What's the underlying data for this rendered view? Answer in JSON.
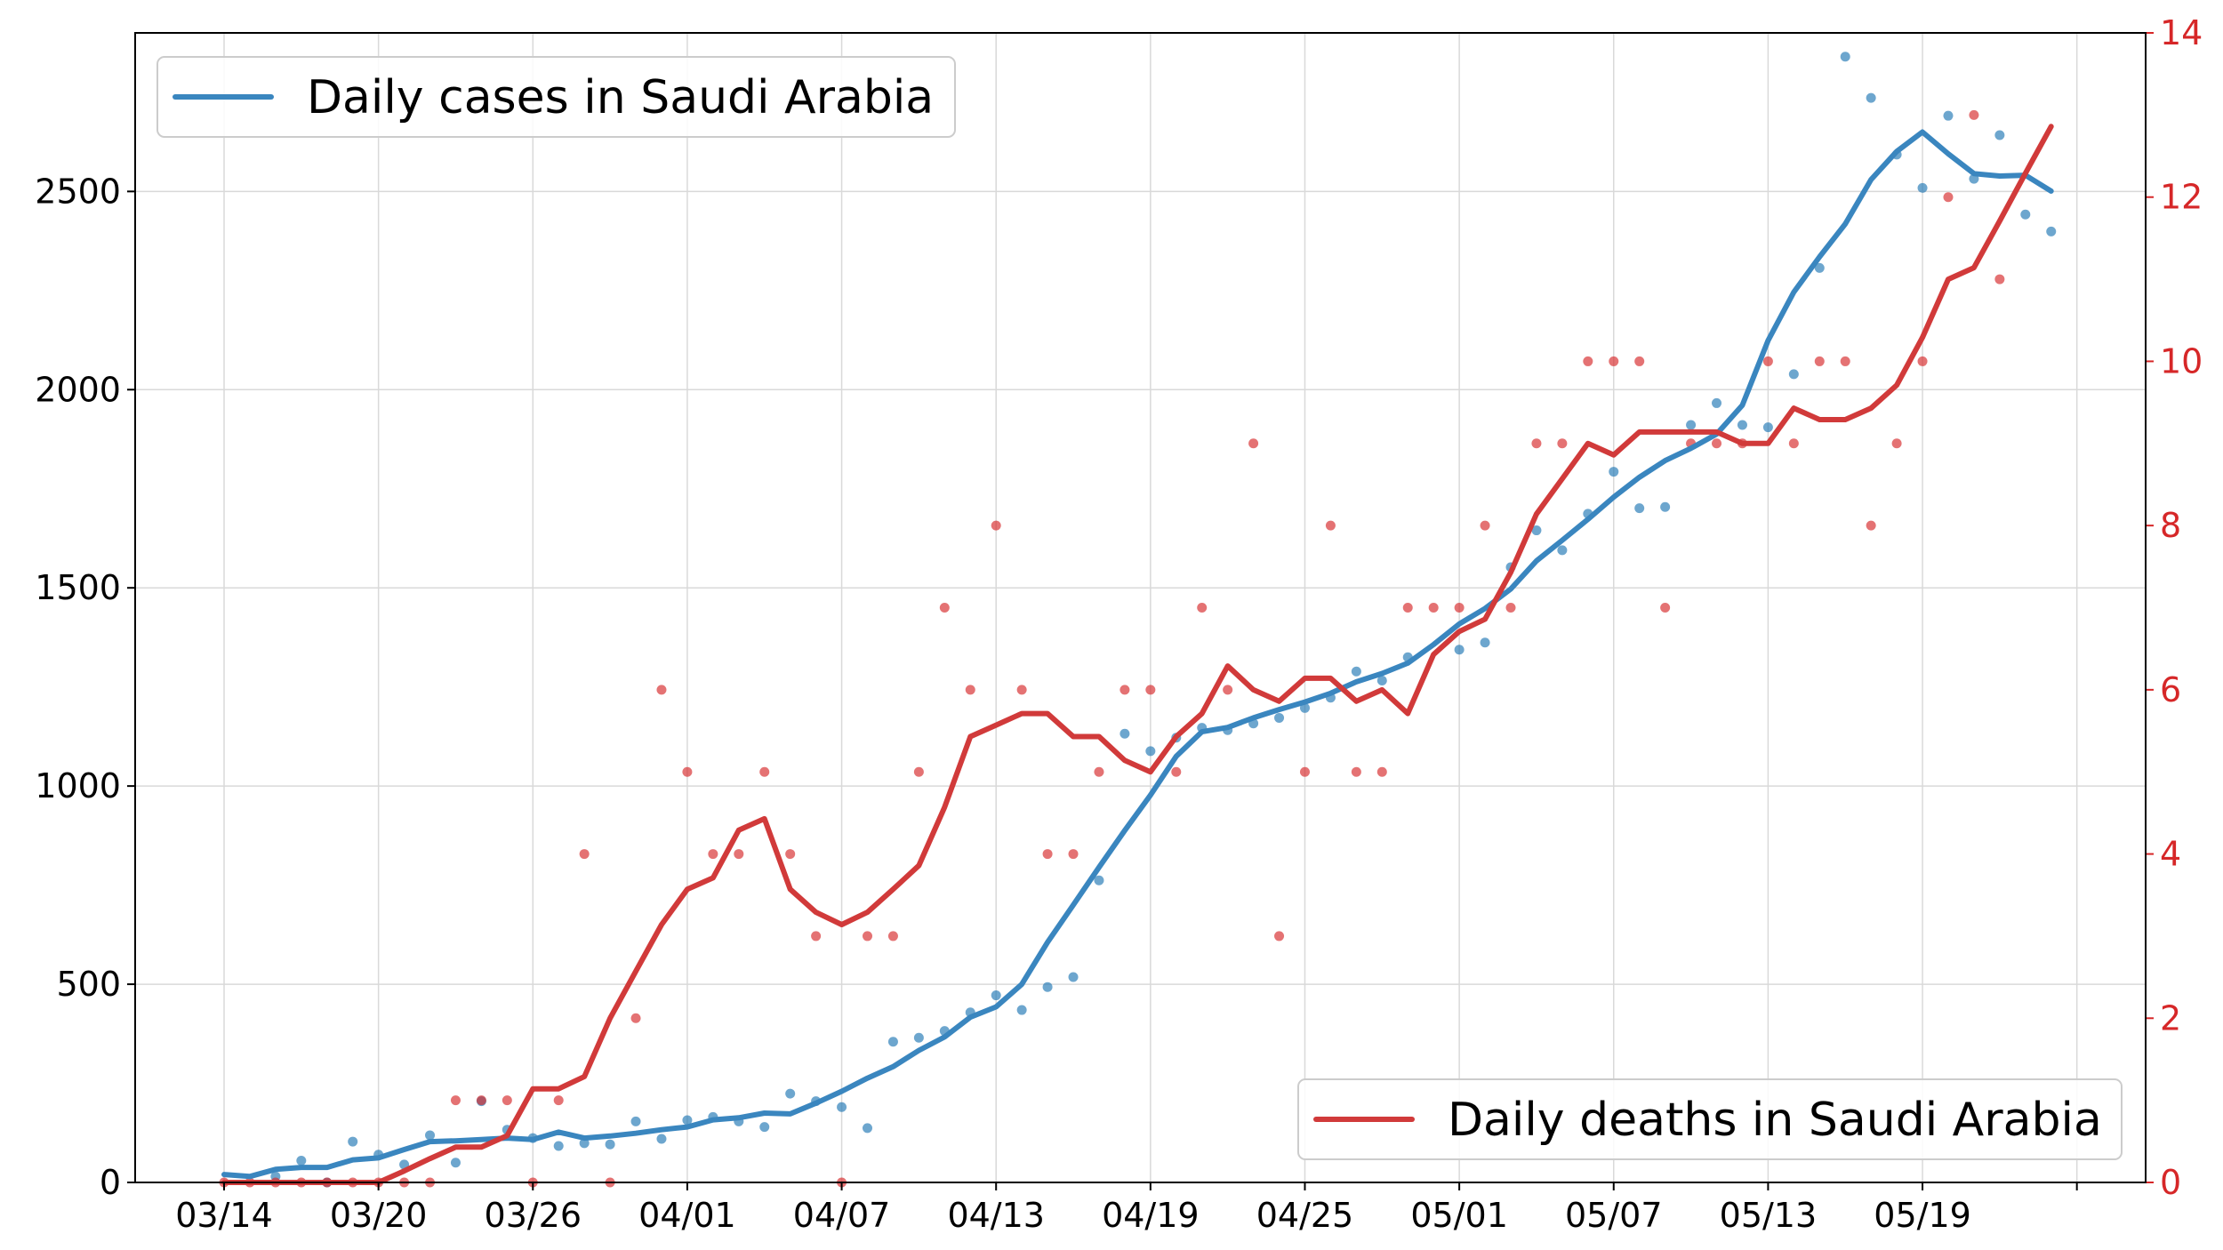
{
  "chart_data": {
    "type": "line",
    "grid": true,
    "x": [
      "03/14",
      "03/15",
      "03/16",
      "03/17",
      "03/18",
      "03/19",
      "03/20",
      "03/21",
      "03/22",
      "03/23",
      "03/24",
      "03/25",
      "03/26",
      "03/27",
      "03/28",
      "03/29",
      "03/30",
      "03/31",
      "04/01",
      "04/02",
      "04/03",
      "04/04",
      "04/05",
      "04/06",
      "04/07",
      "04/08",
      "04/09",
      "04/10",
      "04/11",
      "04/12",
      "04/13",
      "04/14",
      "04/15",
      "04/16",
      "04/17",
      "04/18",
      "04/19",
      "04/20",
      "04/21",
      "04/22",
      "04/23",
      "04/24",
      "04/25",
      "04/26",
      "04/27",
      "04/28",
      "04/29",
      "04/30",
      "05/01",
      "05/02",
      "05/03",
      "05/04",
      "05/05",
      "05/06",
      "05/07",
      "05/08",
      "05/09",
      "05/10",
      "05/11",
      "05/12",
      "05/13",
      "05/14",
      "05/15",
      "05/16",
      "05/17",
      "05/18",
      "05/19",
      "05/20",
      "05/21",
      "05/22",
      "05/23",
      "05/24"
    ],
    "x_ticks": [
      "03/14",
      "03/20",
      "03/26",
      "04/01",
      "04/07",
      "04/13",
      "04/19",
      "04/25",
      "05/01",
      "05/07",
      "05/13",
      "05/19"
    ],
    "y_left": {
      "ylim": [
        0,
        2900
      ],
      "ticks": [
        0,
        500,
        1000,
        1500,
        2000,
        2500
      ],
      "color": "#000000"
    },
    "y_right": {
      "ylim": [
        0,
        14
      ],
      "ticks": [
        0,
        2,
        4,
        6,
        8,
        10,
        12,
        14
      ],
      "color": "#d62728"
    },
    "series": [
      {
        "name": "Daily cases in Saudi Arabia",
        "axis": "left",
        "color": "#1f77b4",
        "line_color": "#3a86bf",
        "legend_position": "top-left",
        "points": [
          null,
          null,
          15,
          55,
          0,
          103,
          70,
          45,
          119,
          50,
          205,
          133,
          112,
          92,
          99,
          96,
          154,
          110,
          157,
          165,
          154,
          140,
          224,
          205,
          190,
          137,
          355,
          365,
          382,
          429,
          472,
          435,
          493,
          518,
          762,
          1132,
          1088,
          1122,
          1147,
          1141,
          1158,
          1172,
          1197,
          1223,
          1289,
          1266,
          1325,
          null,
          1344,
          1362,
          1552,
          1645,
          1595,
          1687,
          1793,
          1701,
          1704,
          1911,
          1966,
          1911,
          1905,
          2039,
          2307,
          2840,
          2736,
          2593,
          2509,
          2691,
          2532,
          2642,
          2442,
          2399
        ],
        "average": [
          20,
          15,
          33,
          38,
          38,
          57,
          62,
          83,
          103,
          105,
          108,
          112,
          108,
          127,
          112,
          117,
          124,
          133,
          140,
          158,
          163,
          175,
          173,
          200,
          230,
          263,
          292,
          333,
          367,
          417,
          443,
          500,
          606,
          700,
          795,
          888,
          977,
          1075,
          1137,
          1148,
          1172,
          1193,
          1212,
          1234,
          1263,
          1284,
          1310,
          1357,
          1409,
          1448,
          1497,
          1568,
          1620,
          1673,
          1729,
          1779,
          1821,
          1852,
          1888,
          1961,
          2124,
          2246,
          2335,
          2418,
          2530,
          2601,
          2650,
          2595,
          2545,
          2539,
          2541,
          2501
        ]
      },
      {
        "name": "Daily deaths in Saudi Arabia",
        "axis": "right",
        "color": "#d62728",
        "line_color": "#d13a3a",
        "legend_position": "bottom-right",
        "points": [
          0,
          0,
          0,
          0,
          0,
          0,
          0,
          0,
          0,
          1,
          1,
          1,
          0,
          1,
          4,
          0,
          2,
          6,
          5,
          4,
          4,
          5,
          4,
          3,
          0,
          3,
          3,
          5,
          7,
          6,
          8,
          6,
          4,
          4,
          5,
          6,
          6,
          5,
          7,
          6,
          9,
          3,
          5,
          8,
          5,
          5,
          7,
          7,
          7,
          8,
          7,
          9,
          9,
          10,
          10,
          10,
          7,
          9,
          9,
          9,
          10,
          9,
          10,
          10,
          8,
          9,
          10,
          12,
          13,
          11,
          null,
          null
        ],
        "average": [
          0,
          0,
          0,
          0,
          0,
          0,
          0,
          0.14,
          0.29,
          0.43,
          0.43,
          0.57,
          1.14,
          1.14,
          1.29,
          2.0,
          2.57,
          3.14,
          3.57,
          3.71,
          4.29,
          4.43,
          3.57,
          3.29,
          3.14,
          3.29,
          3.57,
          3.86,
          4.57,
          5.43,
          5.57,
          5.71,
          5.71,
          5.43,
          5.43,
          5.14,
          5.0,
          5.43,
          5.71,
          6.29,
          6.0,
          5.86,
          6.14,
          6.14,
          5.86,
          6.0,
          5.71,
          6.43,
          6.71,
          6.86,
          7.43,
          8.14,
          8.57,
          9.0,
          8.86,
          9.14,
          9.14,
          9.14,
          9.14,
          9.0,
          9.0,
          9.43,
          9.29,
          9.29,
          9.43,
          9.71,
          10.29,
          11.0,
          11.14,
          11.71,
          12.29,
          12.86
        ]
      }
    ]
  }
}
